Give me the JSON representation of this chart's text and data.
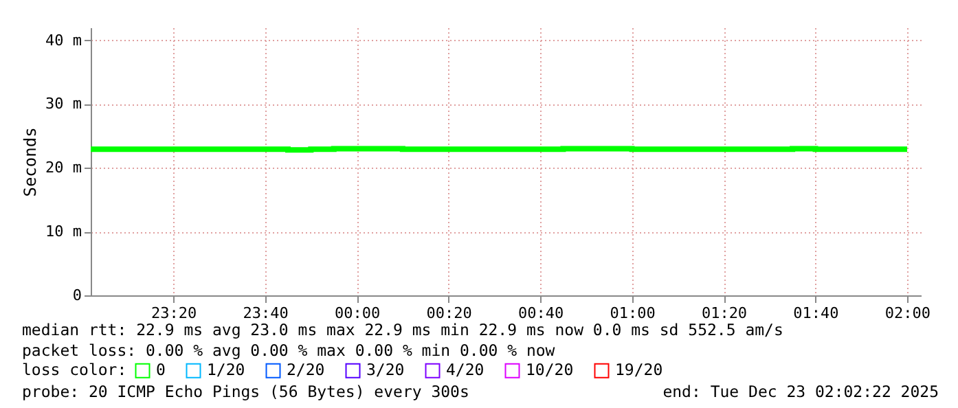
{
  "chart_data": {
    "type": "step",
    "ylabel": "Seconds",
    "x": [
      "2025-12-22T23:02",
      "2025-12-22T23:45",
      "2025-12-22T23:50",
      "2025-12-22T23:55",
      "2025-12-23T00:10",
      "2025-12-23T00:45",
      "2025-12-23T01:00",
      "2025-12-23T01:35",
      "2025-12-23T01:40",
      "2025-12-23T02:00"
    ],
    "series": [
      {
        "name": "0",
        "color": "#00ff00",
        "values": [
          22.9,
          22.8,
          22.9,
          23.0,
          22.9,
          23.0,
          22.9,
          23.0,
          22.9,
          22.9
        ]
      },
      {
        "name": "1/20",
        "color": "#00b8ff",
        "values": [
          null,
          null,
          null,
          null,
          null,
          null,
          null,
          null,
          null,
          null
        ]
      },
      {
        "name": "2/20",
        "color": "#0059ff",
        "values": [
          null,
          null,
          null,
          null,
          null,
          null,
          null,
          null,
          null,
          null
        ]
      },
      {
        "name": "3/20",
        "color": "#5500ff",
        "values": [
          null,
          null,
          null,
          null,
          null,
          null,
          null,
          null,
          null,
          null
        ]
      },
      {
        "name": "4/20",
        "color": "#7e00ff",
        "values": [
          null,
          null,
          null,
          null,
          null,
          null,
          null,
          null,
          null,
          null
        ]
      },
      {
        "name": "10/20",
        "color": "#dd00ff",
        "values": [
          null,
          null,
          null,
          null,
          null,
          null,
          null,
          null,
          null,
          null
        ]
      },
      {
        "name": "19/20",
        "color": "#ff0000",
        "values": [
          null,
          null,
          null,
          null,
          null,
          null,
          null,
          null,
          null,
          null
        ]
      }
    ],
    "legend_title": "loss color:",
    "legend": "bottom left",
    "xlim": [
      "2025-12-22T23:02",
      "2025-12-23T02:03"
    ],
    "xticks": [
      {
        "value": "2025-12-22T23:20",
        "label": "23:20"
      },
      {
        "value": "2025-12-22T23:40",
        "label": "23:40"
      },
      {
        "value": "2025-12-23T00:00",
        "label": "00:00"
      },
      {
        "value": "2025-12-23T00:20",
        "label": "00:20"
      },
      {
        "value": "2025-12-23T00:40",
        "label": "00:40"
      },
      {
        "value": "2025-12-23T01:00",
        "label": "01:00"
      },
      {
        "value": "2025-12-23T01:20",
        "label": "01:20"
      },
      {
        "value": "2025-12-23T01:40",
        "label": "01:40"
      },
      {
        "value": "2025-12-23T02:00",
        "label": "02:00"
      }
    ],
    "ylim": [
      0,
      42
    ],
    "yticks": [
      0,
      {
        "value": 10,
        "label": "10 m"
      },
      {
        "value": 20,
        "label": "20 m"
      },
      {
        "value": 30,
        "label": "30 m"
      },
      {
        "value": 40,
        "label": "40 m"
      }
    ],
    "grid": true,
    "annotations": [
      "median rtt:  22.9 ms avg  23.0 ms max  22.9 ms min  22.9 ms now  0.0 ms sd  552.5   am/s",
      "packet loss: 0.00 % avg  0.00 % max  0.00 % min  0.00 % now",
      "probe:       20 ICMP Echo Pings (56 Bytes) every 300s",
      "end: Tue Dec 23 02:02:22 2025"
    ]
  }
}
